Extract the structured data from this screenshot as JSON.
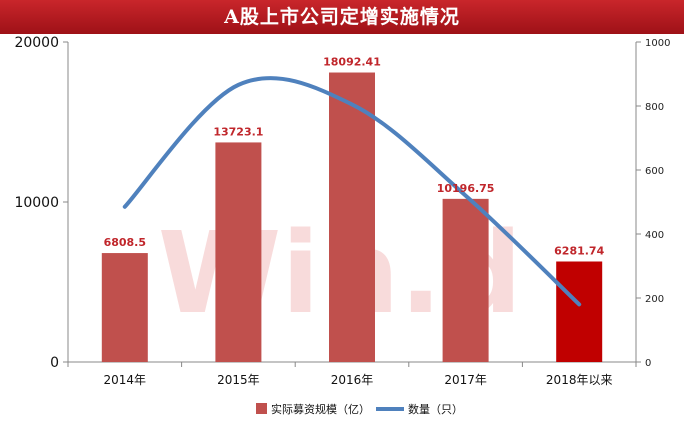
{
  "title": "A股上市公司定增实施情况",
  "watermark": "Win.d",
  "chart_data": {
    "type": "bar+line",
    "title": "A股上市公司定增实施情况",
    "categories": [
      "2014年",
      "2015年",
      "2016年",
      "2017年",
      "2018年以来"
    ],
    "series": [
      {
        "name": "实际募资规模（亿）",
        "type": "bar",
        "axis": "left",
        "values": [
          6808.5,
          13723.1,
          18092.41,
          10196.75,
          6281.74
        ],
        "labels": [
          "6808.5",
          "13723.1",
          "18092.41",
          "10196.75",
          "6281.74"
        ],
        "color": "#c0504d",
        "highlight_color": "#c00000",
        "highlight_index": 4
      },
      {
        "name": "数量（只）",
        "type": "line",
        "axis": "right",
        "smooth": true,
        "values": [
          485,
          866,
          805,
          520,
          180
        ],
        "color": "#4f81bd"
      }
    ],
    "y_left": {
      "min": 0,
      "max": 20000,
      "ticks": [
        0,
        10000,
        20000
      ]
    },
    "y_right": {
      "min": 0,
      "max": 1000,
      "ticks": [
        0,
        200,
        400,
        600,
        800,
        1000
      ]
    },
    "grid": false,
    "legend": "bottom"
  }
}
